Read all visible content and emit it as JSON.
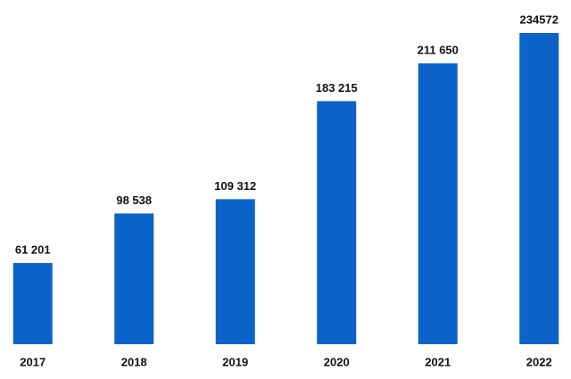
{
  "chart_data": {
    "type": "bar",
    "categories": [
      "2017",
      "2018",
      "2019",
      "2020",
      "2021",
      "2022"
    ],
    "values": [
      61201,
      98538,
      109312,
      183215,
      211650,
      234572
    ],
    "value_labels": [
      "61 201",
      "98 538",
      "109 312",
      "183 215",
      "211 650",
      "234572"
    ],
    "color": "#0b63c9"
  }
}
